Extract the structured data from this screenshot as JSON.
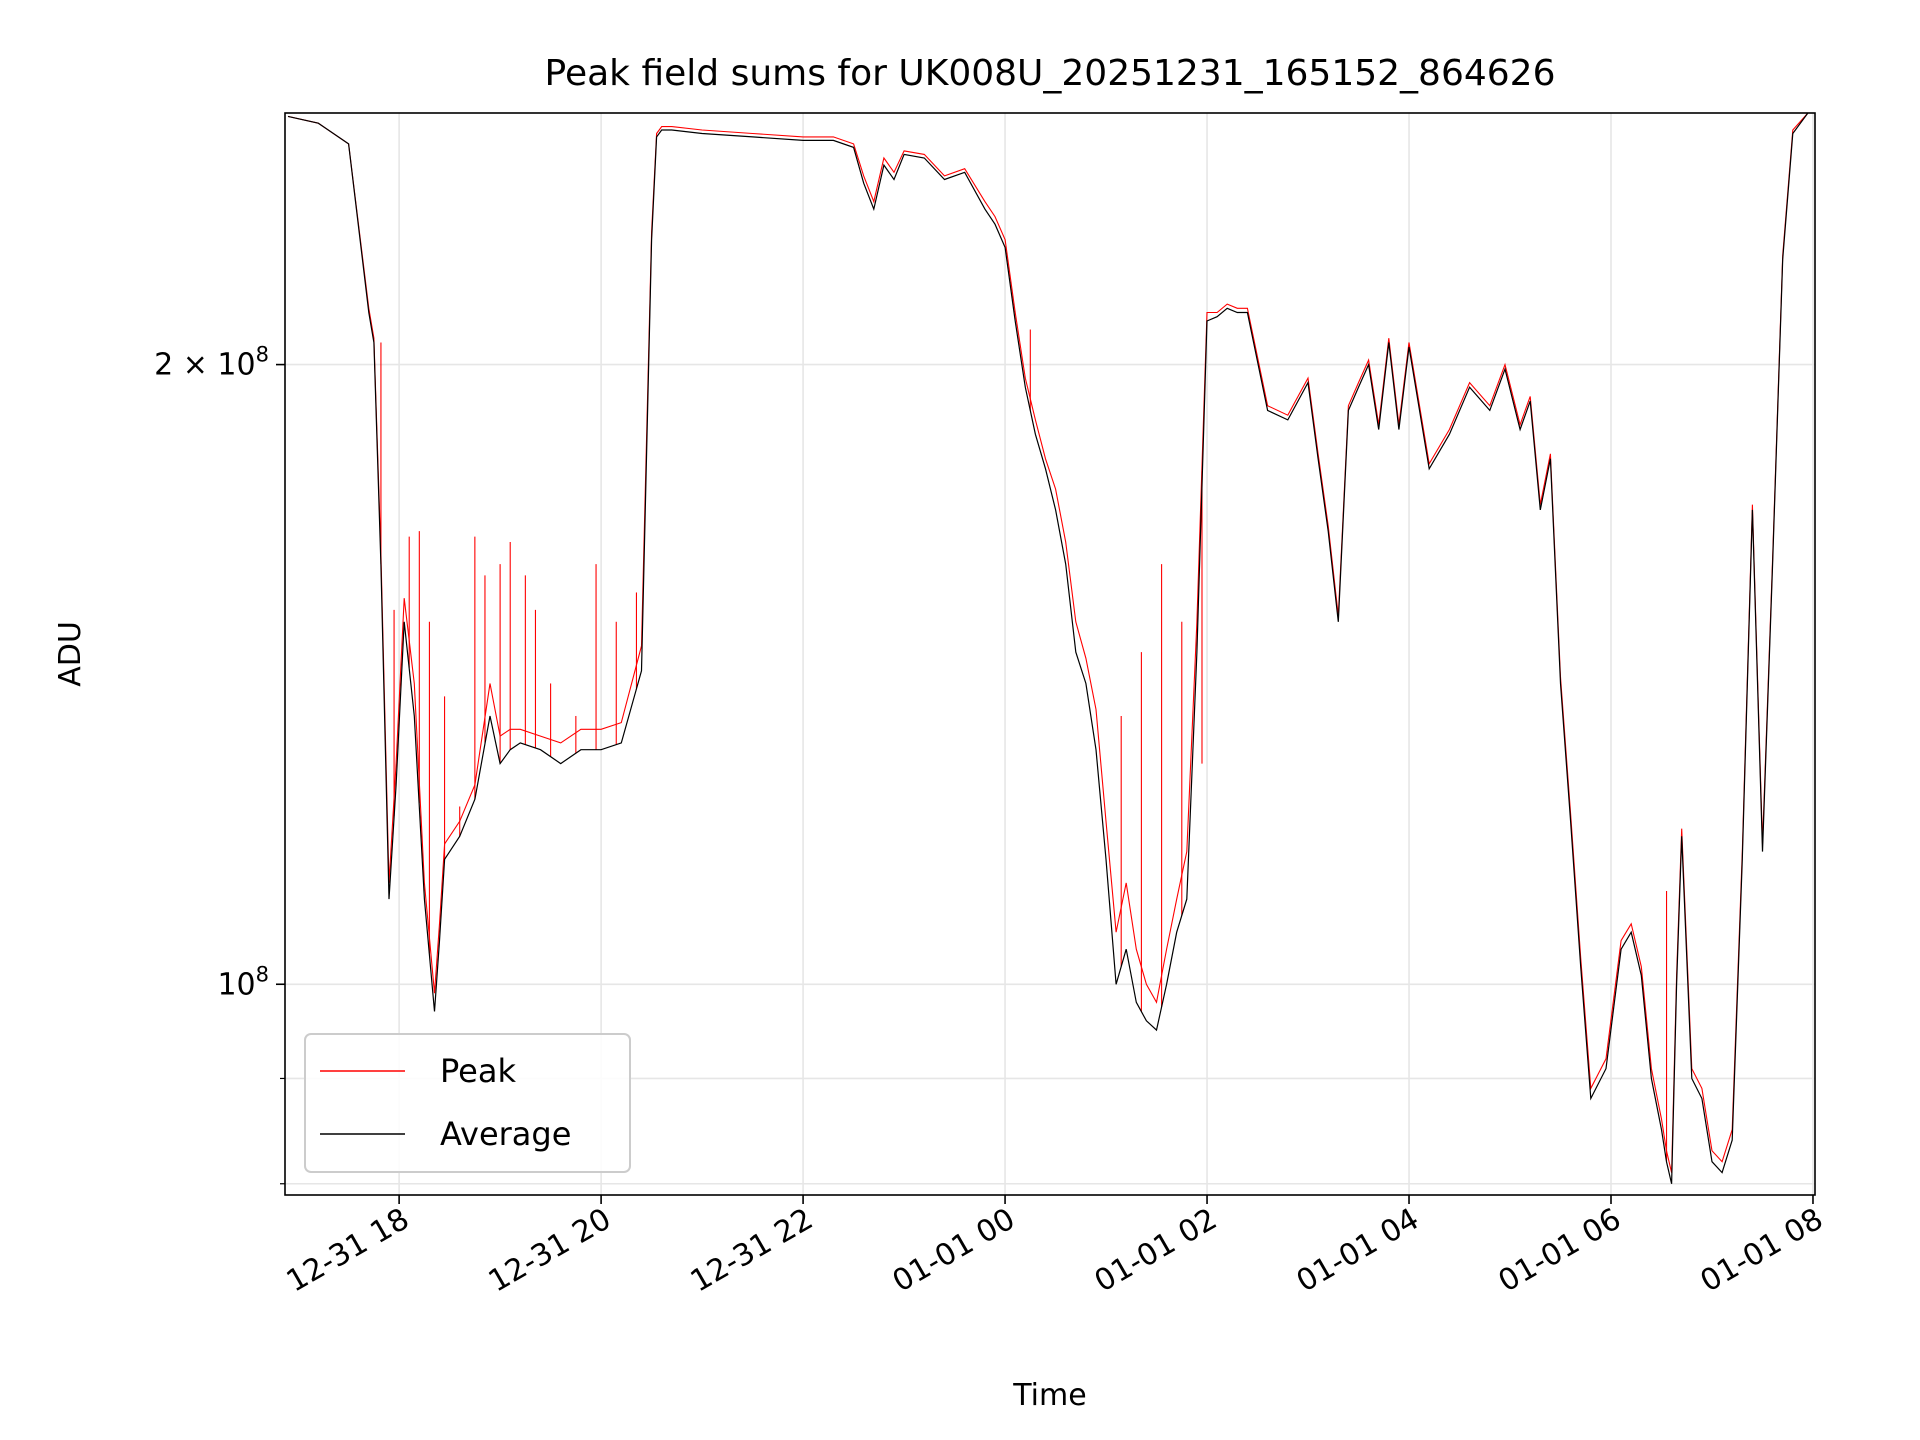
{
  "chart_data": {
    "type": "line",
    "title": "Peak field sums for UK008U_20251231_165152_864626",
    "xlabel": "Time",
    "ylabel": "ADU",
    "x_ticks": [
      "12-31 18",
      "12-31 20",
      "12-31 22",
      "01-01 00",
      "01-01 02",
      "01-01 04",
      "01-01 06",
      "01-01 08"
    ],
    "x_tick_hours": [
      18,
      20,
      22,
      24,
      26,
      28,
      30,
      32
    ],
    "xlim_hours": [
      16.87,
      32.02
    ],
    "y_scale": "log",
    "ylim": [
      79000000,
      265000000
    ],
    "y_ticks": [
      {
        "value": 100000000,
        "mantissa": "",
        "base": "10",
        "exp": "8"
      },
      {
        "value": 200000000,
        "mantissa": "2 × ",
        "base": "10",
        "exp": "8"
      }
    ],
    "y_minor_ticks": [
      80000000,
      90000000
    ],
    "grid": true,
    "legend": {
      "position": "lower-left"
    },
    "series": [
      {
        "name": "Peak",
        "color": "#ff0000",
        "line_width": 1.1,
        "spikes": true
      },
      {
        "name": "Average",
        "color": "#000000",
        "line_width": 1.2
      }
    ],
    "x_hours": [
      16.9,
      17.2,
      17.5,
      17.7,
      17.75,
      17.82,
      17.9,
      17.97,
      18.05,
      18.15,
      18.25,
      18.35,
      18.4,
      18.45,
      18.6,
      18.75,
      18.9,
      19.0,
      19.1,
      19.2,
      19.4,
      19.6,
      19.8,
      20.0,
      20.2,
      20.4,
      20.5,
      20.55,
      20.6,
      20.7,
      21.0,
      21.5,
      22.0,
      22.3,
      22.5,
      22.6,
      22.7,
      22.8,
      22.9,
      23.0,
      23.2,
      23.4,
      23.6,
      23.8,
      23.9,
      24.0,
      24.1,
      24.2,
      24.3,
      24.4,
      24.5,
      24.6,
      24.7,
      24.8,
      24.9,
      25.0,
      25.1,
      25.2,
      25.3,
      25.4,
      25.5,
      25.6,
      25.7,
      25.8,
      25.9,
      26.0,
      26.1,
      26.2,
      26.3,
      26.4,
      26.6,
      26.8,
      27.0,
      27.1,
      27.2,
      27.3,
      27.4,
      27.5,
      27.6,
      27.7,
      27.8,
      27.9,
      28.0,
      28.2,
      28.4,
      28.6,
      28.8,
      28.95,
      29.1,
      29.2,
      29.3,
      29.4,
      29.5,
      29.6,
      29.7,
      29.8,
      29.95,
      30.1,
      30.2,
      30.3,
      30.4,
      30.5,
      30.55,
      30.6,
      30.65,
      30.7,
      30.8,
      30.9,
      31.0,
      31.1,
      31.2,
      31.3,
      31.4,
      31.5,
      31.6,
      31.7,
      31.8,
      31.95
    ],
    "average": [
      264000000,
      262000000,
      256000000,
      212000000,
      205000000,
      160000000,
      110000000,
      125000000,
      150000000,
      135000000,
      110000000,
      97000000,
      105000000,
      115000000,
      118000000,
      123000000,
      135000000,
      128000000,
      130000000,
      131000000,
      130000000,
      128000000,
      130000000,
      130000000,
      131000000,
      142000000,
      230000000,
      258000000,
      260000000,
      260000000,
      259000000,
      258000000,
      257000000,
      257000000,
      255000000,
      245000000,
      238000000,
      250000000,
      246000000,
      253000000,
      252000000,
      246000000,
      248000000,
      238000000,
      234000000,
      228000000,
      210000000,
      195000000,
      185000000,
      178000000,
      170000000,
      160000000,
      145000000,
      140000000,
      130000000,
      115000000,
      100000000,
      104000000,
      98000000,
      96000000,
      95000000,
      100000000,
      106000000,
      110000000,
      145000000,
      210000000,
      211000000,
      213000000,
      212000000,
      212000000,
      190000000,
      188000000,
      196000000,
      180000000,
      166000000,
      150000000,
      190000000,
      195000000,
      200000000,
      186000000,
      205000000,
      186000000,
      204000000,
      178000000,
      185000000,
      195000000,
      190000000,
      199000000,
      186000000,
      192000000,
      170000000,
      180000000,
      140000000,
      120000000,
      102000000,
      88000000,
      91000000,
      104000000,
      106000000,
      101000000,
      90000000,
      85000000,
      82000000,
      80000000,
      100000000,
      118000000,
      90000000,
      88000000,
      82000000,
      81000000,
      84000000,
      115000000,
      170000000,
      116000000,
      160000000,
      225000000,
      259000000,
      265000000
    ],
    "peak": [
      264000000,
      262000000,
      256000000,
      213000000,
      206000000,
      162000000,
      112000000,
      128000000,
      154000000,
      140000000,
      112000000,
      99000000,
      107000000,
      117000000,
      120000000,
      125000000,
      140000000,
      132000000,
      133000000,
      133000000,
      132000000,
      131000000,
      133000000,
      133000000,
      134000000,
      146000000,
      232000000,
      259000000,
      261000000,
      261000000,
      260000000,
      259000000,
      258000000,
      258000000,
      256000000,
      247000000,
      240000000,
      252000000,
      248000000,
      254000000,
      253000000,
      247000000,
      249000000,
      240000000,
      236000000,
      230000000,
      212000000,
      197000000,
      188000000,
      180000000,
      174000000,
      164000000,
      150000000,
      144000000,
      136000000,
      120000000,
      106000000,
      112000000,
      104000000,
      100000000,
      98000000,
      104000000,
      110000000,
      116000000,
      150000000,
      212000000,
      212000000,
      214000000,
      213000000,
      213000000,
      191000000,
      189000000,
      197000000,
      181000000,
      167000000,
      151000000,
      191000000,
      196000000,
      201000000,
      187000000,
      206000000,
      187000000,
      205000000,
      179000000,
      186000000,
      196000000,
      191000000,
      200000000,
      187000000,
      193000000,
      171000000,
      181000000,
      141000000,
      121000000,
      103000000,
      89000000,
      92000000,
      105000000,
      107000000,
      102000000,
      91000000,
      86000000,
      83000000,
      81000000,
      101000000,
      119000000,
      91000000,
      89000000,
      83000000,
      82000000,
      85000000,
      116000000,
      171000000,
      117000000,
      161000000,
      226000000,
      260000000,
      265000000
    ],
    "peak_spikes": [
      {
        "hour": 17.82,
        "value": 205000000
      },
      {
        "hour": 17.95,
        "value": 152000000
      },
      {
        "hour": 18.05,
        "value": 150000000
      },
      {
        "hour": 18.1,
        "value": 165000000
      },
      {
        "hour": 18.2,
        "value": 166000000
      },
      {
        "hour": 18.3,
        "value": 150000000
      },
      {
        "hour": 18.45,
        "value": 138000000
      },
      {
        "hour": 18.6,
        "value": 122000000
      },
      {
        "hour": 18.75,
        "value": 165000000
      },
      {
        "hour": 18.85,
        "value": 158000000
      },
      {
        "hour": 19.0,
        "value": 160000000
      },
      {
        "hour": 19.1,
        "value": 164000000
      },
      {
        "hour": 19.25,
        "value": 158000000
      },
      {
        "hour": 19.35,
        "value": 152000000
      },
      {
        "hour": 19.5,
        "value": 140000000
      },
      {
        "hour": 19.75,
        "value": 135000000
      },
      {
        "hour": 19.95,
        "value": 160000000
      },
      {
        "hour": 20.15,
        "value": 150000000
      },
      {
        "hour": 20.35,
        "value": 155000000
      },
      {
        "hour": 24.25,
        "value": 208000000
      },
      {
        "hour": 25.15,
        "value": 135000000
      },
      {
        "hour": 25.35,
        "value": 145000000
      },
      {
        "hour": 25.55,
        "value": 160000000
      },
      {
        "hour": 25.75,
        "value": 150000000
      },
      {
        "hour": 25.95,
        "value": 128000000
      },
      {
        "hour": 30.55,
        "value": 111000000
      }
    ]
  }
}
